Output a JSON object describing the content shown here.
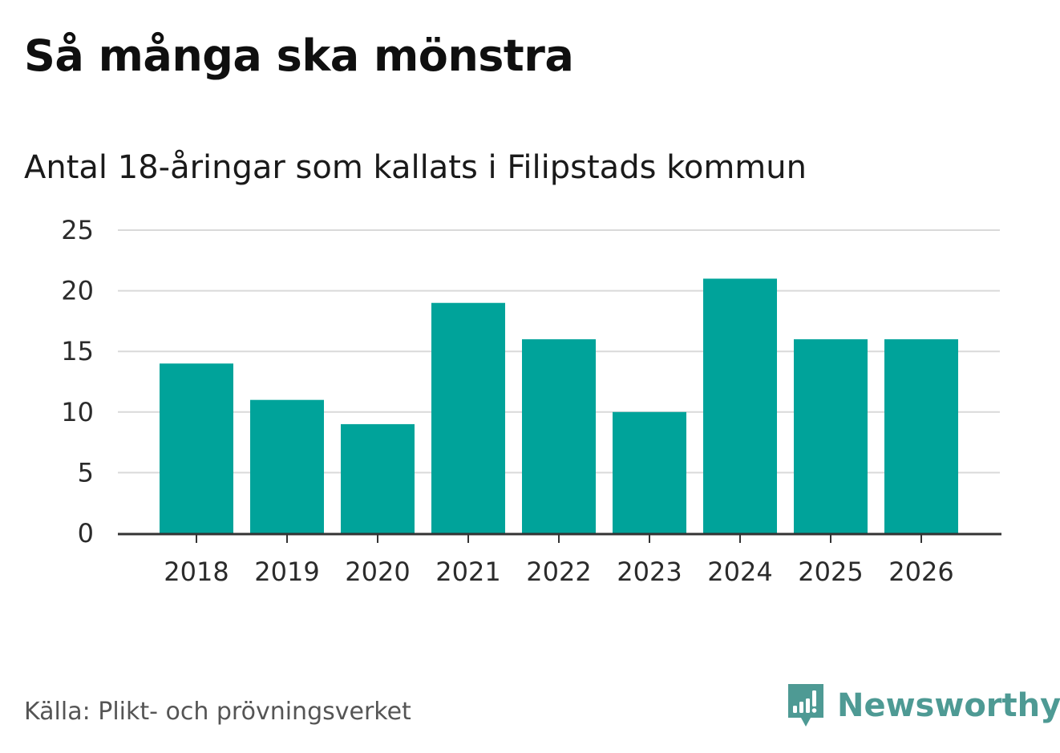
{
  "title": "Så många ska mönstra",
  "subtitle": "Antal 18-åringar som kallats i Filipstads kommun",
  "source": "Källa: Plikt- och prövningsverket",
  "brand": {
    "name": "Newsworthy",
    "icon": "newsworthy-logo-icon",
    "color": "#4e9a94"
  },
  "colors": {
    "bar": "#00a39a",
    "grid": "#d9d9d9",
    "axis": "#333333",
    "tick_text": "#2b2b2b"
  },
  "chart_data": {
    "type": "bar",
    "title": "Så många ska mönstra",
    "subtitle": "Antal 18-åringar som kallats i Filipstads kommun",
    "xlabel": "",
    "ylabel": "",
    "categories": [
      "2018",
      "2019",
      "2020",
      "2021",
      "2022",
      "2023",
      "2024",
      "2025",
      "2026"
    ],
    "values": [
      14,
      11,
      9,
      19,
      16,
      10,
      21,
      16,
      16
    ],
    "ylim": [
      0,
      25
    ],
    "yticks": [
      0,
      5,
      10,
      15,
      20,
      25
    ],
    "grid": true,
    "legend": "none"
  }
}
